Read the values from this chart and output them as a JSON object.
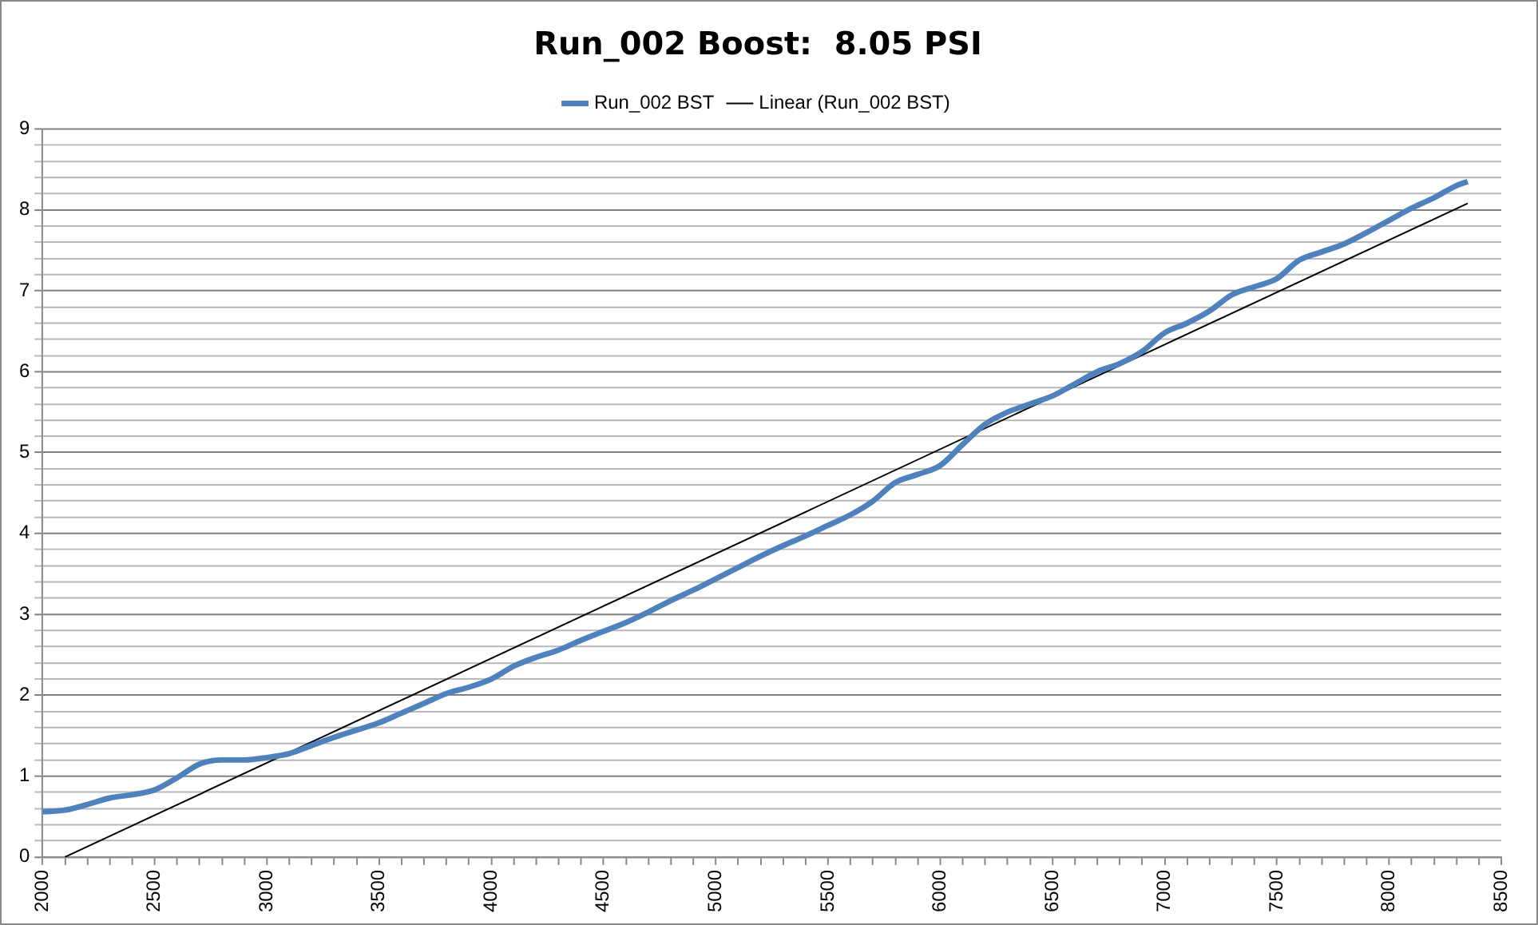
{
  "chart_data": {
    "type": "line",
    "title": "Run_002 Boost:  8.05 PSI",
    "xlim": [
      2000,
      8500
    ],
    "xticks": [
      2000,
      {
        "value": 2100,
        "label": null
      },
      {
        "value": 2200,
        "label": null
      },
      {
        "value": 2300,
        "label": null
      },
      {
        "value": 2400,
        "label": null
      },
      2500,
      {
        "value": 2600,
        "label": null
      },
      {
        "value": 2700,
        "label": null
      },
      {
        "value": 2800,
        "label": null
      },
      {
        "value": 2900,
        "label": null
      },
      3000,
      {
        "value": 3100,
        "label": null
      },
      {
        "value": 3200,
        "label": null
      },
      {
        "value": 3300,
        "label": null
      },
      {
        "value": 3400,
        "label": null
      },
      3500,
      {
        "value": 3600,
        "label": null
      },
      {
        "value": 3700,
        "label": null
      },
      {
        "value": 3800,
        "label": null
      },
      {
        "value": 3900,
        "label": null
      },
      4000,
      {
        "value": 4100,
        "label": null
      },
      {
        "value": 4200,
        "label": null
      },
      {
        "value": 4300,
        "label": null
      },
      {
        "value": 4400,
        "label": null
      },
      4500,
      {
        "value": 4600,
        "label": null
      },
      {
        "value": 4700,
        "label": null
      },
      {
        "value": 4800,
        "label": null
      },
      {
        "value": 4900,
        "label": null
      },
      5000,
      {
        "value": 5100,
        "label": null
      },
      {
        "value": 5200,
        "label": null
      },
      {
        "value": 5300,
        "label": null
      },
      {
        "value": 5400,
        "label": null
      },
      5500,
      {
        "value": 5600,
        "label": null
      },
      {
        "value": 5700,
        "label": null
      },
      {
        "value": 5800,
        "label": null
      },
      {
        "value": 5900,
        "label": null
      },
      6000,
      {
        "value": 6100,
        "label": null
      },
      {
        "value": 6200,
        "label": null
      },
      {
        "value": 6300,
        "label": null
      },
      {
        "value": 6400,
        "label": null
      },
      6500,
      {
        "value": 6600,
        "label": null
      },
      {
        "value": 6700,
        "label": null
      },
      {
        "value": 6800,
        "label": null
      },
      {
        "value": 6900,
        "label": null
      },
      7000,
      {
        "value": 7100,
        "label": null
      },
      {
        "value": 7200,
        "label": null
      },
      {
        "value": 7300,
        "label": null
      },
      {
        "value": 7400,
        "label": null
      },
      7500,
      {
        "value": 7600,
        "label": null
      },
      {
        "value": 7700,
        "label": null
      },
      {
        "value": 7800,
        "label": null
      },
      {
        "value": 7900,
        "label": null
      },
      8000,
      {
        "value": 8100,
        "label": null
      },
      {
        "value": 8200,
        "label": null
      },
      {
        "value": 8300,
        "label": null
      },
      {
        "value": 8400,
        "label": null
      },
      8500
    ],
    "ylim": [
      0,
      9
    ],
    "yticks": [
      0,
      {
        "value": 0.2,
        "label": null
      },
      {
        "value": 0.4,
        "label": null
      },
      {
        "value": 0.6,
        "label": null
      },
      {
        "value": 0.8,
        "label": null
      },
      1,
      {
        "value": 1.2,
        "label": null
      },
      {
        "value": 1.4,
        "label": null
      },
      {
        "value": 1.6,
        "label": null
      },
      {
        "value": 1.8,
        "label": null
      },
      2,
      {
        "value": 2.2,
        "label": null
      },
      {
        "value": 2.4,
        "label": null
      },
      {
        "value": 2.6,
        "label": null
      },
      {
        "value": 2.8,
        "label": null
      },
      3,
      {
        "value": 3.2,
        "label": null
      },
      {
        "value": 3.4,
        "label": null
      },
      {
        "value": 3.6,
        "label": null
      },
      {
        "value": 3.8,
        "label": null
      },
      4,
      {
        "value": 4.2,
        "label": null
      },
      {
        "value": 4.4,
        "label": null
      },
      {
        "value": 4.6,
        "label": null
      },
      {
        "value": 4.8,
        "label": null
      },
      5,
      {
        "value": 5.2,
        "label": null
      },
      {
        "value": 5.4,
        "label": null
      },
      {
        "value": 5.6,
        "label": null
      },
      {
        "value": 5.8,
        "label": null
      },
      6,
      {
        "value": 6.2,
        "label": null
      },
      {
        "value": 6.4,
        "label": null
      },
      {
        "value": 6.6,
        "label": null
      },
      {
        "value": 6.8,
        "label": null
      },
      7,
      {
        "value": 7.2,
        "label": null
      },
      {
        "value": 7.4,
        "label": null
      },
      {
        "value": 7.6,
        "label": null
      },
      {
        "value": 7.8,
        "label": null
      },
      8,
      {
        "value": 8.2,
        "label": null
      },
      {
        "value": 8.4,
        "label": null
      },
      {
        "value": 8.6,
        "label": null
      },
      {
        "value": 8.8,
        "label": null
      },
      9
    ],
    "grid": "y",
    "legend": "top",
    "marker": "none",
    "line_style": "solid",
    "series": [
      {
        "name": "Run_002 BST",
        "color": "#4f81bd",
        "x": [
          2000,
          2100,
          2200,
          2300,
          2400,
          2500,
          2600,
          2700,
          2800,
          2900,
          3000,
          3100,
          3200,
          3300,
          3400,
          3500,
          3600,
          3700,
          3800,
          3900,
          4000,
          4100,
          4200,
          4300,
          4400,
          4500,
          4600,
          4700,
          4800,
          4900,
          5000,
          5100,
          5200,
          5300,
          5400,
          5500,
          5600,
          5700,
          5800,
          5900,
          6000,
          6100,
          6200,
          6300,
          6400,
          6500,
          6600,
          6700,
          6800,
          6900,
          7000,
          7100,
          7200,
          7300,
          7400,
          7500,
          7600,
          7700,
          7800,
          7900,
          8000,
          8100,
          8200,
          8300,
          8350
        ],
        "values": [
          0.56,
          0.58,
          0.65,
          0.73,
          0.77,
          0.83,
          0.98,
          1.15,
          1.2,
          1.2,
          1.23,
          1.28,
          1.38,
          1.48,
          1.57,
          1.66,
          1.78,
          1.9,
          2.02,
          2.1,
          2.2,
          2.36,
          2.47,
          2.56,
          2.68,
          2.79,
          2.9,
          3.03,
          3.17,
          3.3,
          3.44,
          3.58,
          3.72,
          3.85,
          3.97,
          4.1,
          4.23,
          4.4,
          4.63,
          4.73,
          4.84,
          5.1,
          5.35,
          5.5,
          5.6,
          5.7,
          5.85,
          6.0,
          6.1,
          6.25,
          6.48,
          6.6,
          6.75,
          6.95,
          7.05,
          7.15,
          7.38,
          7.48,
          7.58,
          7.72,
          7.87,
          8.02,
          8.15,
          8.3,
          8.35
        ]
      },
      {
        "name": "Linear (Run_002 BST)",
        "color": "#000000",
        "x": [
          2100,
          8350
        ],
        "values": [
          0,
          8.08
        ]
      }
    ]
  }
}
